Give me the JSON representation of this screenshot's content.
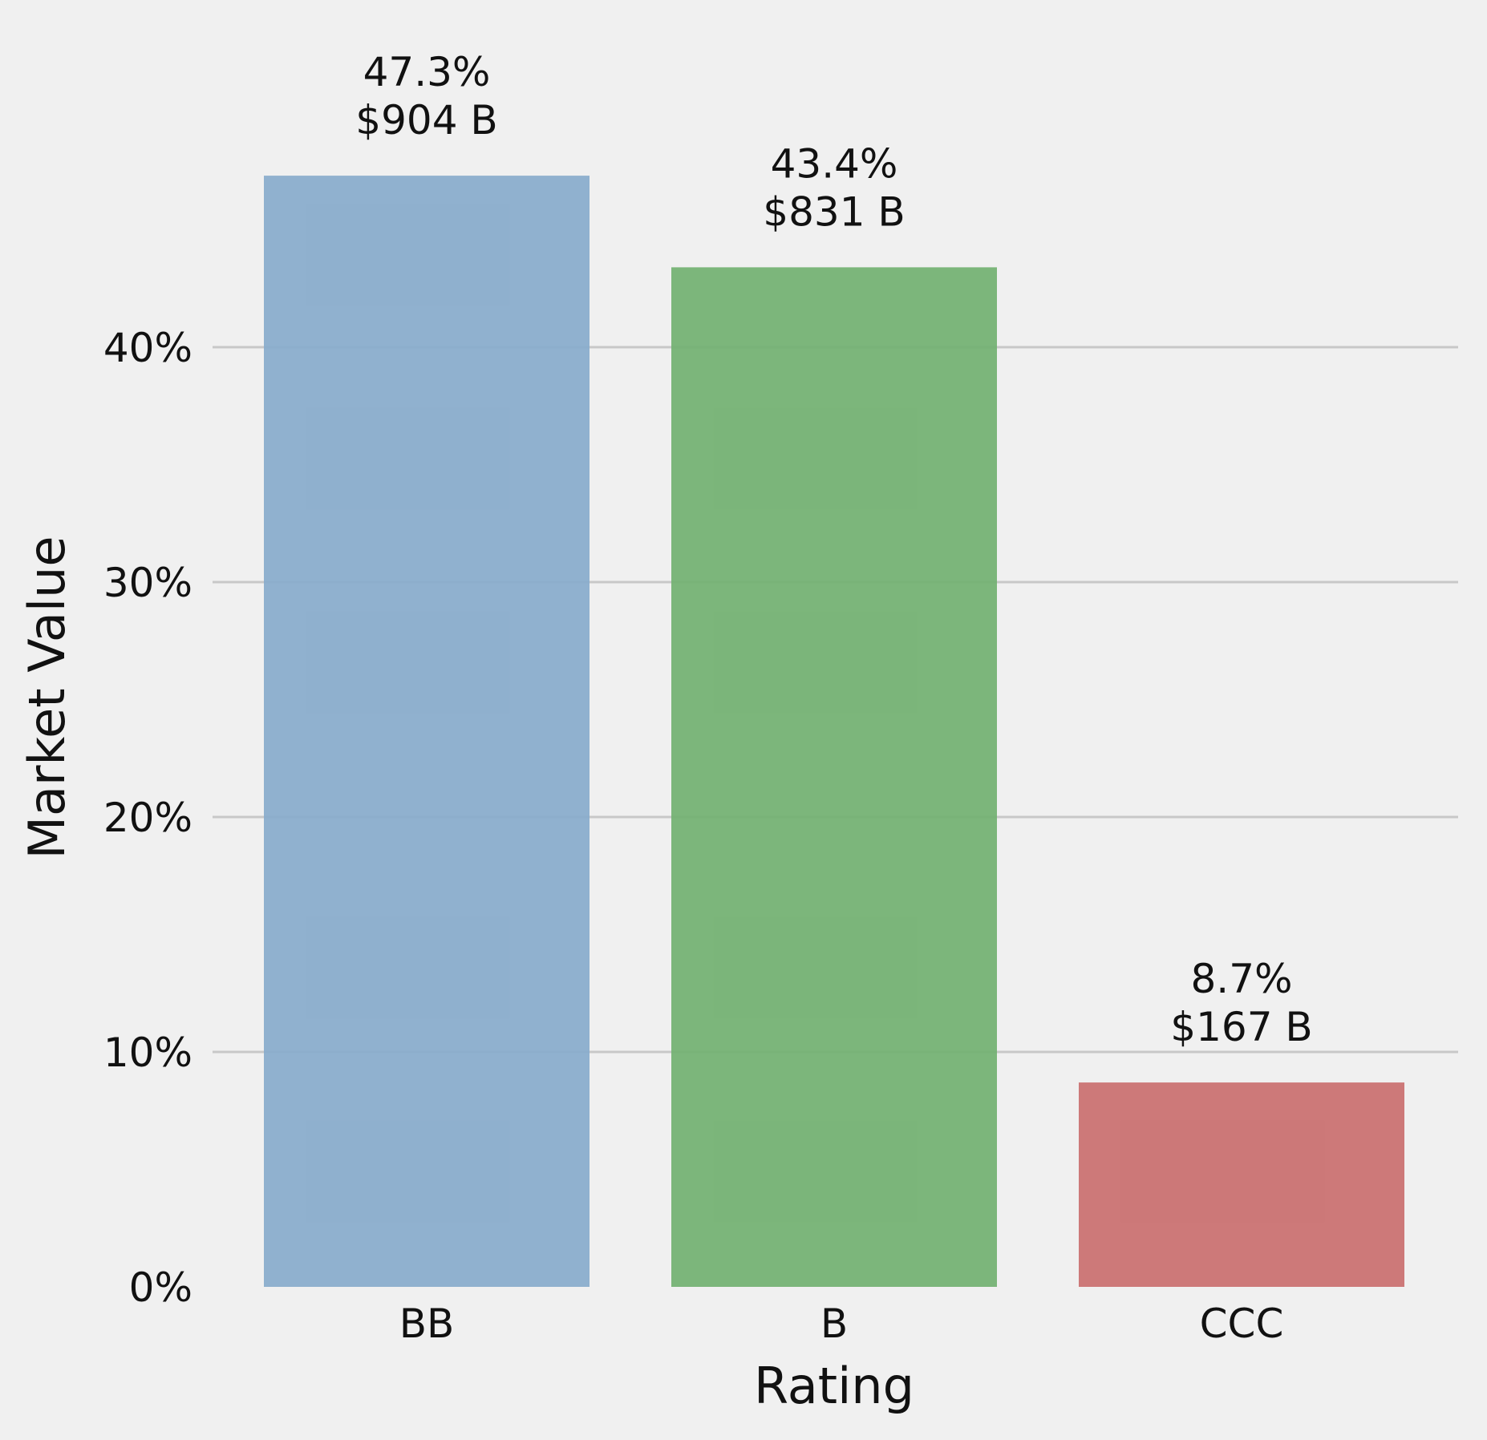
{
  "chart_data": {
    "type": "bar",
    "title": "",
    "xlabel": "Rating",
    "ylabel": "Market Value",
    "categories": [
      "BB",
      "B",
      "CCC"
    ],
    "values": [
      47.3,
      43.4,
      8.7
    ],
    "value_labels": [
      {
        "pct": "47.3%",
        "amount": "$904 B"
      },
      {
        "pct": "43.4%",
        "amount": "$831 B"
      },
      {
        "pct": "8.7%",
        "amount": "$167 B"
      }
    ],
    "bar_colors": [
      "#8aadcc",
      "#75b274",
      "#ca7272"
    ],
    "ylim": [
      0,
      50
    ],
    "yticks": [
      0,
      10,
      20,
      30,
      40
    ],
    "ytick_labels": [
      "0%",
      "10%",
      "20%",
      "30%",
      "40%"
    ],
    "grid": "horizontal",
    "background": "#f0f0f0"
  }
}
